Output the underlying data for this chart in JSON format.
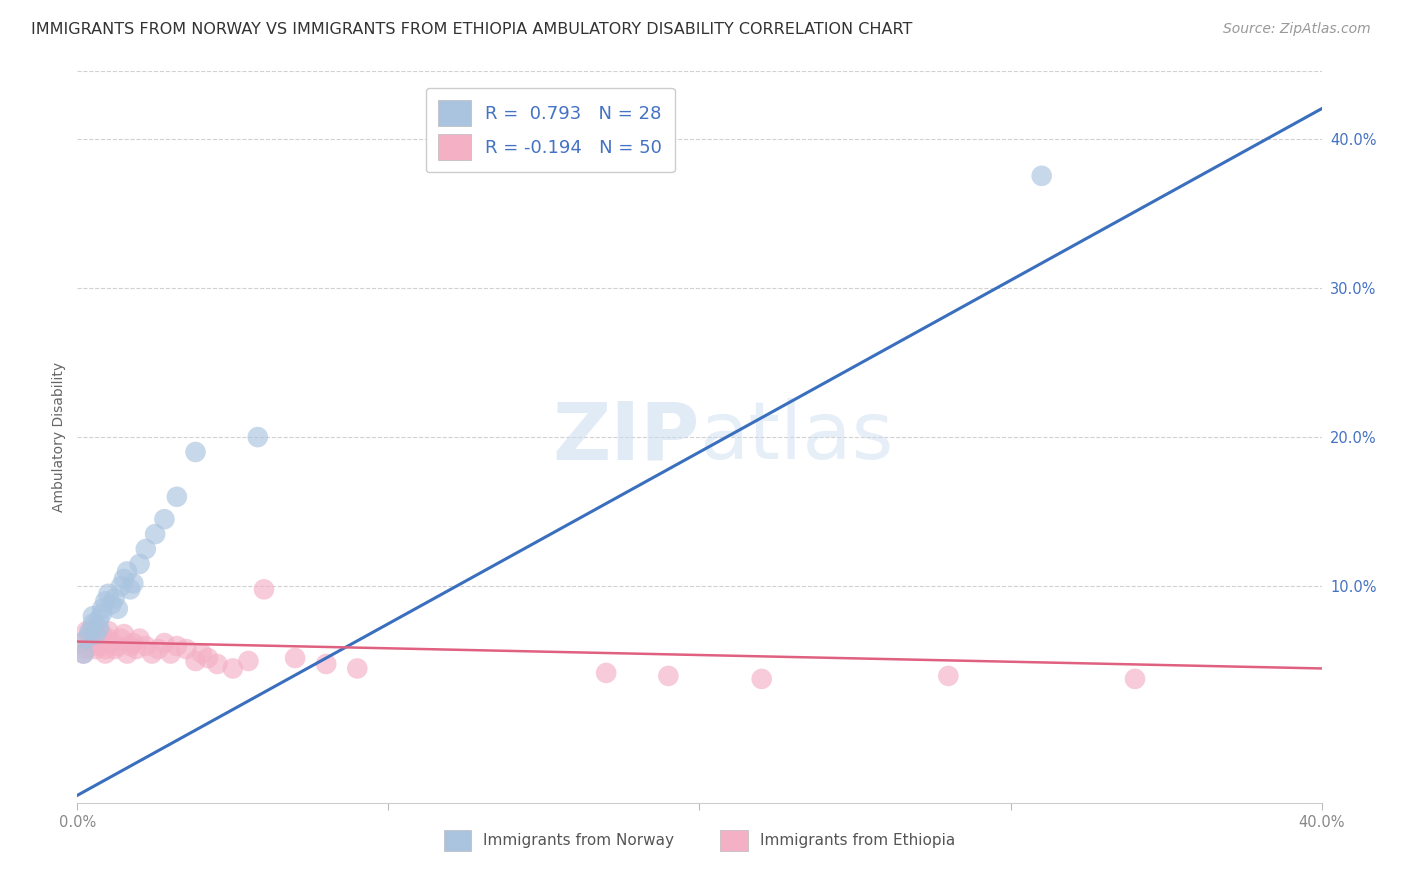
{
  "title": "IMMIGRANTS FROM NORWAY VS IMMIGRANTS FROM ETHIOPIA AMBULATORY DISABILITY CORRELATION CHART",
  "source": "Source: ZipAtlas.com",
  "ylabel": "Ambulatory Disability",
  "xlabel_norway": "Immigrants from Norway",
  "xlabel_ethiopia": "Immigrants from Ethiopia",
  "legend_norway": {
    "R": 0.793,
    "N": 28,
    "color": "#aac4e0",
    "line_color": "#3a6fbe"
  },
  "legend_ethiopia": {
    "R": -0.194,
    "N": 50,
    "color": "#f4b0c5",
    "line_color": "#e06080"
  },
  "xlim": [
    0.0,
    0.4
  ],
  "ylim": [
    -0.045,
    0.445
  ],
  "norway_scatter_x": [
    0.002,
    0.003,
    0.004,
    0.005,
    0.005,
    0.006,
    0.007,
    0.007,
    0.008,
    0.008,
    0.009,
    0.01,
    0.011,
    0.012,
    0.013,
    0.014,
    0.015,
    0.016,
    0.017,
    0.018,
    0.02,
    0.022,
    0.025,
    0.028,
    0.032,
    0.038,
    0.058,
    0.31
  ],
  "norway_scatter_y": [
    0.055,
    0.065,
    0.07,
    0.075,
    0.08,
    0.068,
    0.072,
    0.078,
    0.082,
    0.085,
    0.09,
    0.095,
    0.088,
    0.092,
    0.085,
    0.1,
    0.105,
    0.11,
    0.098,
    0.102,
    0.115,
    0.125,
    0.135,
    0.145,
    0.16,
    0.19,
    0.2,
    0.375
  ],
  "ethiopia_scatter_x": [
    0.001,
    0.002,
    0.003,
    0.003,
    0.004,
    0.004,
    0.005,
    0.005,
    0.006,
    0.006,
    0.007,
    0.007,
    0.008,
    0.008,
    0.009,
    0.009,
    0.01,
    0.01,
    0.011,
    0.012,
    0.013,
    0.014,
    0.015,
    0.016,
    0.017,
    0.018,
    0.019,
    0.02,
    0.022,
    0.024,
    0.026,
    0.028,
    0.03,
    0.032,
    0.035,
    0.038,
    0.04,
    0.042,
    0.045,
    0.05,
    0.055,
    0.06,
    0.07,
    0.08,
    0.09,
    0.17,
    0.19,
    0.22,
    0.28,
    0.34
  ],
  "ethiopia_scatter_y": [
    0.062,
    0.055,
    0.058,
    0.07,
    0.06,
    0.068,
    0.065,
    0.072,
    0.058,
    0.066,
    0.07,
    0.06,
    0.062,
    0.068,
    0.055,
    0.058,
    0.065,
    0.07,
    0.062,
    0.058,
    0.06,
    0.065,
    0.068,
    0.055,
    0.06,
    0.062,
    0.058,
    0.065,
    0.06,
    0.055,
    0.058,
    0.062,
    0.055,
    0.06,
    0.058,
    0.05,
    0.055,
    0.052,
    0.048,
    0.045,
    0.05,
    0.098,
    0.052,
    0.048,
    0.045,
    0.042,
    0.04,
    0.038,
    0.04,
    0.038
  ],
  "norway_line_x": [
    0.0,
    0.4
  ],
  "norway_line_y": [
    -0.04,
    0.42
  ],
  "ethiopia_line_x": [
    0.0,
    0.4
  ],
  "ethiopia_line_y": [
    0.063,
    0.045
  ],
  "background_color": "#ffffff",
  "grid_color": "#cccccc",
  "title_fontsize": 11.5,
  "source_fontsize": 10,
  "axis_label_fontsize": 10,
  "tick_label_color": "#888888"
}
